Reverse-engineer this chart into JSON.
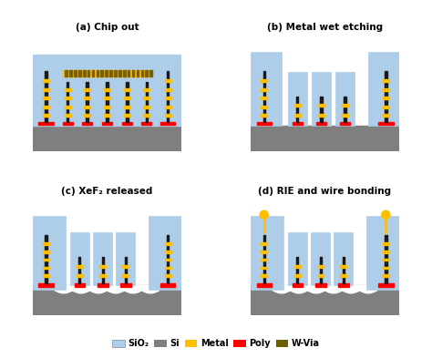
{
  "title_a": "(a) Chip out",
  "title_b": "(b) Metal wet etching",
  "title_c": "(c) XeF₂ released",
  "title_d": "(d) RIE and wire bonding",
  "colors": {
    "sio2": "#aecde8",
    "si": "#7f7f7f",
    "metal": "#ffbf00",
    "metal_dark": "#7a6000",
    "poly": "#ff0000",
    "wvia": "#6b6000",
    "black": "#1a1a1a",
    "white": "#ffffff",
    "background": "#ffffff"
  },
  "legend": [
    {
      "label": "SiO₂",
      "color": "#aecde8"
    },
    {
      "label": "Si",
      "color": "#7f7f7f"
    },
    {
      "label": "Metal",
      "color": "#ffbf00"
    },
    {
      "label": "Poly",
      "color": "#ff0000"
    },
    {
      "label": "W-Via",
      "color": "#6b6000"
    }
  ]
}
